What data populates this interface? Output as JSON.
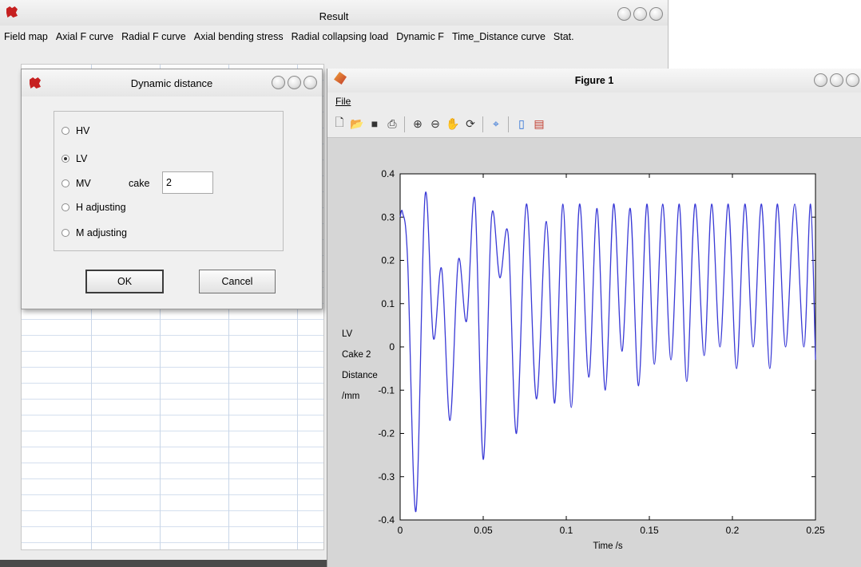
{
  "result_window": {
    "title": "Result",
    "menu": [
      "Field map",
      "Axial F curve",
      "Radial F curve",
      "Axial bending stress",
      "Radial collapsing load",
      "Dynamic F",
      "Time_Distance curve",
      "Stat."
    ]
  },
  "dialog": {
    "title": "Dynamic distance",
    "options": [
      {
        "label": "HV",
        "checked": false
      },
      {
        "label": "LV",
        "checked": true
      },
      {
        "label": "MV",
        "checked": false
      },
      {
        "label": "H adjusting",
        "checked": false
      },
      {
        "label": "M adjusting",
        "checked": false
      }
    ],
    "cake_label": "cake",
    "cake_value": "2",
    "ok_label": "OK",
    "cancel_label": "Cancel"
  },
  "figure": {
    "title": "Figure 1",
    "menu_file": "File",
    "toolbar_icons": [
      "new-file-icon",
      "open-folder-icon",
      "save-icon",
      "print-icon",
      "zoom-in-icon",
      "zoom-out-icon",
      "pan-hand-icon",
      "rotate-3d-icon",
      "data-cursor-icon",
      "colorbar-icon",
      "legend-icon"
    ]
  },
  "chart_data": {
    "type": "line",
    "title": "",
    "xlabel": "Time /s",
    "ylabel_lines": [
      "LV",
      "Cake 2",
      "Distance",
      "/mm"
    ],
    "xlim": [
      0,
      0.25
    ],
    "ylim": [
      -0.4,
      0.4
    ],
    "xticks": [
      "0",
      "0.05",
      "0.1",
      "0.15",
      "0.2",
      "0.25"
    ],
    "yticks": [
      "0.4",
      "0.3",
      "0.2",
      "0.1",
      "0",
      "-0.1",
      "-0.2",
      "-0.3",
      "-0.4"
    ],
    "grid": false,
    "line_color": "#3a3ad6",
    "series": [
      {
        "x": [
          0,
          0.0015,
          0.0045,
          0.0095,
          0.015,
          0.02,
          0.025,
          0.03,
          0.035,
          0.04,
          0.045,
          0.05,
          0.055,
          0.06,
          0.065,
          0.07,
          0.076,
          0.082,
          0.088,
          0.093,
          0.098,
          0.103,
          0.108,
          0.1135,
          0.1185,
          0.1235,
          0.1285,
          0.1335,
          0.1385,
          0.1435,
          0.1485,
          0.153,
          0.158,
          0.163,
          0.168,
          0.1725,
          0.1775,
          0.183,
          0.1875,
          0.1925,
          0.1975,
          0.2025,
          0.2075,
          0.2125,
          0.2175,
          0.2225,
          0.227,
          0.232,
          0.2375,
          0.243,
          0.247,
          0.25
        ],
        "y": [
          0.3,
          0.31,
          0.2,
          -0.38,
          0.35,
          0.02,
          0.18,
          -0.17,
          0.2,
          0.06,
          0.34,
          -0.26,
          0.3,
          0.16,
          0.26,
          -0.2,
          0.33,
          -0.12,
          0.29,
          -0.13,
          0.33,
          -0.14,
          0.33,
          -0.07,
          0.32,
          -0.1,
          0.33,
          -0.01,
          0.32,
          -0.09,
          0.33,
          -0.04,
          0.33,
          -0.03,
          0.33,
          -0.08,
          0.33,
          -0.02,
          0.33,
          0.0,
          0.33,
          -0.05,
          0.33,
          0.0,
          0.33,
          -0.05,
          0.33,
          0.0,
          0.33,
          0.0,
          0.33,
          -0.03
        ]
      }
    ]
  }
}
